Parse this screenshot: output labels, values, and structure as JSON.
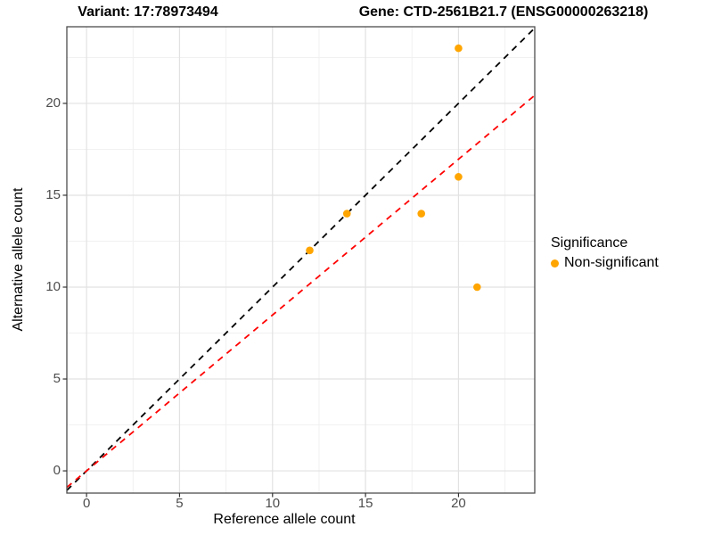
{
  "chart_data": {
    "type": "scatter",
    "title_variant": "Variant: 17:78973494",
    "title_gene": "Gene: CTD-2561B21.7 (ENSG00000263218)",
    "xlabel": "Reference allele count",
    "ylabel": "Alternative allele count",
    "xlim": [
      -1.06,
      24.1
    ],
    "ylim": [
      -1.21,
      24.17
    ],
    "xticks": [
      0,
      5,
      10,
      15,
      20
    ],
    "yticks": [
      0,
      5,
      10,
      15,
      20
    ],
    "minor_xticks": [
      2.5,
      7.5,
      12.5,
      17.5,
      22.5
    ],
    "minor_yticks": [
      2.5,
      7.5,
      12.5,
      17.5,
      22.5
    ],
    "grid": "major+minor",
    "background": "#ffffff",
    "panel_border_color": "#4d4d4d",
    "major_grid_color": "#e2e2e2",
    "minor_grid_color": "#efefef",
    "series": [
      {
        "name": "Non-significant",
        "color": "#FFA500",
        "points": [
          {
            "x": 12,
            "y": 12
          },
          {
            "x": 14,
            "y": 14
          },
          {
            "x": 18,
            "y": 14
          },
          {
            "x": 20,
            "y": 16
          },
          {
            "x": 20,
            "y": 23
          },
          {
            "x": 21,
            "y": 10
          }
        ]
      }
    ],
    "reference_lines": [
      {
        "name": "identity-line",
        "slope": 1,
        "intercept": 0,
        "color": "#000000",
        "linestyle": "dashed"
      },
      {
        "name": "allelic-ratio-line",
        "slope": 0.848,
        "intercept": 0,
        "color": "#FF0000",
        "linestyle": "dashed"
      }
    ],
    "legend": {
      "title": "Significance",
      "position": "right",
      "items": [
        {
          "label": "Non-significant",
          "color": "#FFA500"
        }
      ]
    }
  }
}
